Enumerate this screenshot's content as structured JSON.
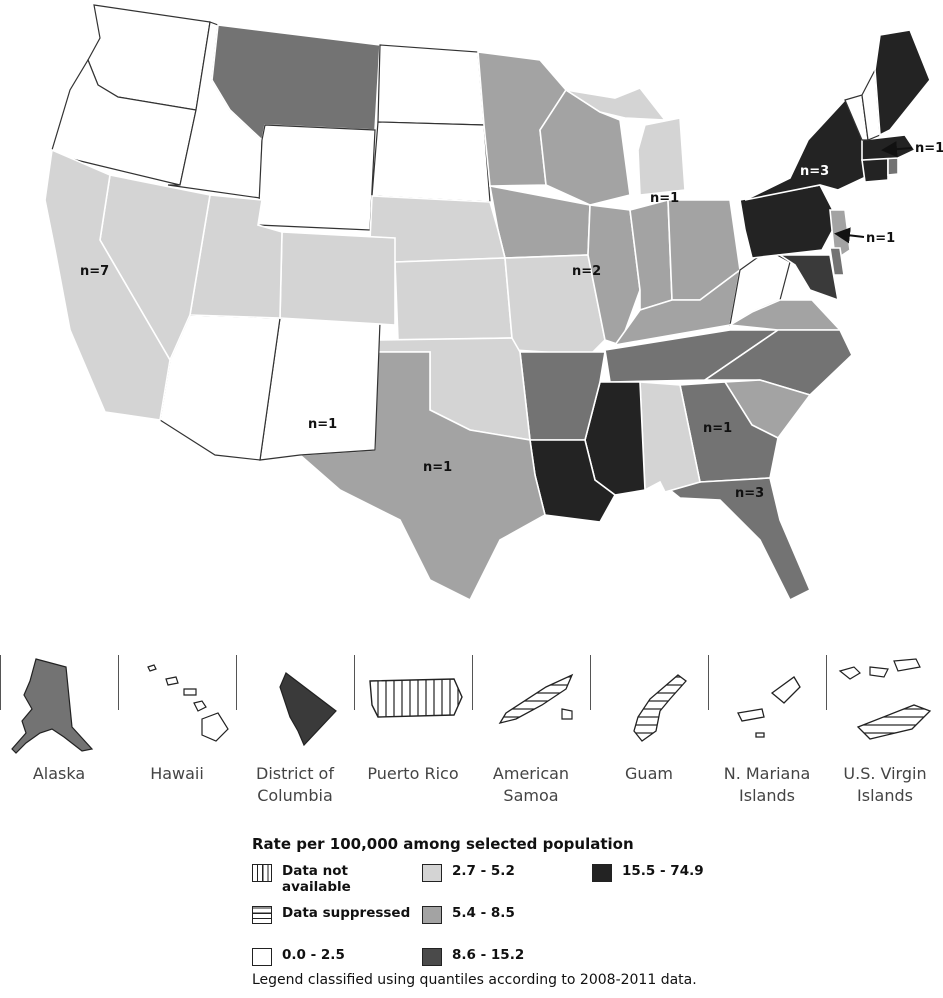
{
  "legend": {
    "title": "Rate per 100,000 among selected population",
    "note": "Legend classified using quantiles according to 2008-2011 data.",
    "items": [
      {
        "label": "Data not available",
        "pattern": "vertical-lines",
        "color": "#ffffff"
      },
      {
        "label": "Data suppressed",
        "pattern": "horizontal-lines",
        "color": "#ffffff"
      },
      {
        "label": "0.0 - 2.5",
        "pattern": "solid",
        "color": "#ffffff"
      },
      {
        "label": "2.7 - 5.2",
        "pattern": "solid",
        "color": "#d4d4d4"
      },
      {
        "label": "5.4 - 8.5",
        "pattern": "solid",
        "color": "#a3a3a3"
      },
      {
        "label": "8.6 - 15.2",
        "pattern": "solid",
        "color": "#4a4a4a"
      },
      {
        "label": "15.5 - 74.9",
        "pattern": "solid",
        "color": "#232323"
      }
    ]
  },
  "state_count_labels": [
    "n=7",
    "n=1",
    "n=1",
    "n=2",
    "n=1",
    "n=3",
    "n=1",
    "n=1",
    "n=1",
    "n=3"
  ],
  "territories": [
    {
      "name": "Alaska",
      "shading": "5.4 - 8.5"
    },
    {
      "name": "Hawaii",
      "shading": "0.0 - 2.5"
    },
    {
      "name": "District of Columbia",
      "shading": "8.6 - 15.2"
    },
    {
      "name": "Puerto Rico",
      "shading": "Data not available"
    },
    {
      "name": "American Samoa",
      "shading": "Data suppressed"
    },
    {
      "name": "Guam",
      "shading": "Data suppressed"
    },
    {
      "name": "N. Mariana Islands",
      "shading": "0.0 - 2.5"
    },
    {
      "name": "U.S. Virgin Islands",
      "shading": "Data suppressed"
    }
  ]
}
